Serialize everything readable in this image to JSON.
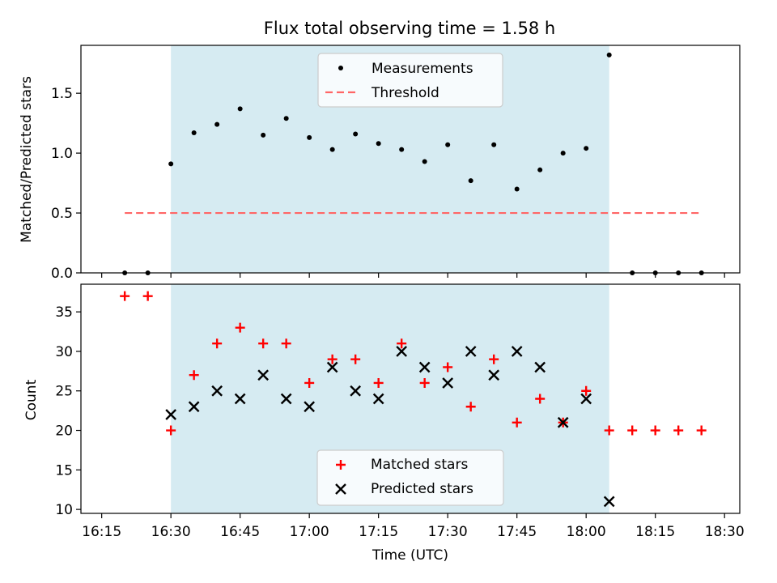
{
  "figure": {
    "title": "Flux total observing time = 1.58 h",
    "xlabel": "Time (UTC)",
    "x_ticks": [
      "16:15",
      "16:30",
      "16:45",
      "17:00",
      "17:15",
      "17:30",
      "17:45",
      "18:00",
      "18:15",
      "18:30"
    ],
    "observing_window": [
      "16:30",
      "18:05"
    ],
    "colors": {
      "window": "#add8e6",
      "threshold": "#ff6666",
      "matched": "#ff0000",
      "predicted": "#000000",
      "measurement": "#000000"
    }
  },
  "chart_data": [
    {
      "type": "scatter",
      "panel": "top",
      "ylabel": "Matched/Predicted stars",
      "ylim": [
        0,
        1.9
      ],
      "y_ticks": [
        "0.0",
        "0.5",
        "1.0",
        "1.5"
      ],
      "legend_position": "upper-center",
      "legend": [
        "Measurements",
        "Threshold"
      ],
      "x": [
        "16:20",
        "16:25",
        "16:30",
        "16:35",
        "16:40",
        "16:45",
        "16:50",
        "16:55",
        "17:00",
        "17:05",
        "17:10",
        "17:15",
        "17:20",
        "17:25",
        "17:30",
        "17:35",
        "17:40",
        "17:45",
        "17:50",
        "17:55",
        "18:00",
        "18:05",
        "18:10",
        "18:15",
        "18:20",
        "18:25"
      ],
      "series": [
        {
          "name": "Measurements",
          "values": [
            0,
            0,
            0.91,
            1.17,
            1.24,
            1.37,
            1.15,
            1.29,
            1.13,
            1.03,
            1.16,
            1.08,
            1.03,
            0.93,
            1.07,
            0.77,
            1.07,
            0.7,
            0.86,
            1.0,
            1.04,
            1.82,
            0,
            0,
            0,
            0
          ]
        },
        {
          "name": "Threshold",
          "x": [
            "16:20",
            "18:25"
          ],
          "values": [
            0.5,
            0.5
          ]
        }
      ]
    },
    {
      "type": "scatter",
      "panel": "bottom",
      "ylabel": "Count",
      "ylim": [
        9.5,
        38.5
      ],
      "y_ticks": [
        "10",
        "15",
        "20",
        "25",
        "30",
        "35"
      ],
      "legend_position": "lower-center",
      "legend": [
        "Matched stars",
        "Predicted stars"
      ],
      "series": [
        {
          "name": "Matched stars",
          "x": [
            "16:20",
            "16:25",
            "16:30",
            "16:35",
            "16:40",
            "16:45",
            "16:50",
            "16:55",
            "17:00",
            "17:05",
            "17:10",
            "17:15",
            "17:20",
            "17:25",
            "17:30",
            "17:35",
            "17:40",
            "17:45",
            "17:50",
            "17:55",
            "18:00",
            "18:05",
            "18:10",
            "18:15",
            "18:20",
            "18:25"
          ],
          "values": [
            37,
            37,
            20,
            27,
            31,
            33,
            31,
            31,
            26,
            29,
            29,
            26,
            31,
            26,
            28,
            23,
            29,
            21,
            24,
            21,
            25,
            20,
            20,
            20,
            20,
            20
          ]
        },
        {
          "name": "Predicted stars",
          "x": [
            "16:30",
            "16:35",
            "16:40",
            "16:45",
            "16:50",
            "16:55",
            "17:00",
            "17:05",
            "17:10",
            "17:15",
            "17:20",
            "17:25",
            "17:30",
            "17:35",
            "17:40",
            "17:45",
            "17:50",
            "17:55",
            "18:00",
            "18:05"
          ],
          "values": [
            22,
            23,
            25,
            24,
            27,
            24,
            23,
            28,
            25,
            24,
            30,
            28,
            26,
            30,
            27,
            30,
            28,
            21,
            24,
            11
          ]
        }
      ]
    }
  ]
}
